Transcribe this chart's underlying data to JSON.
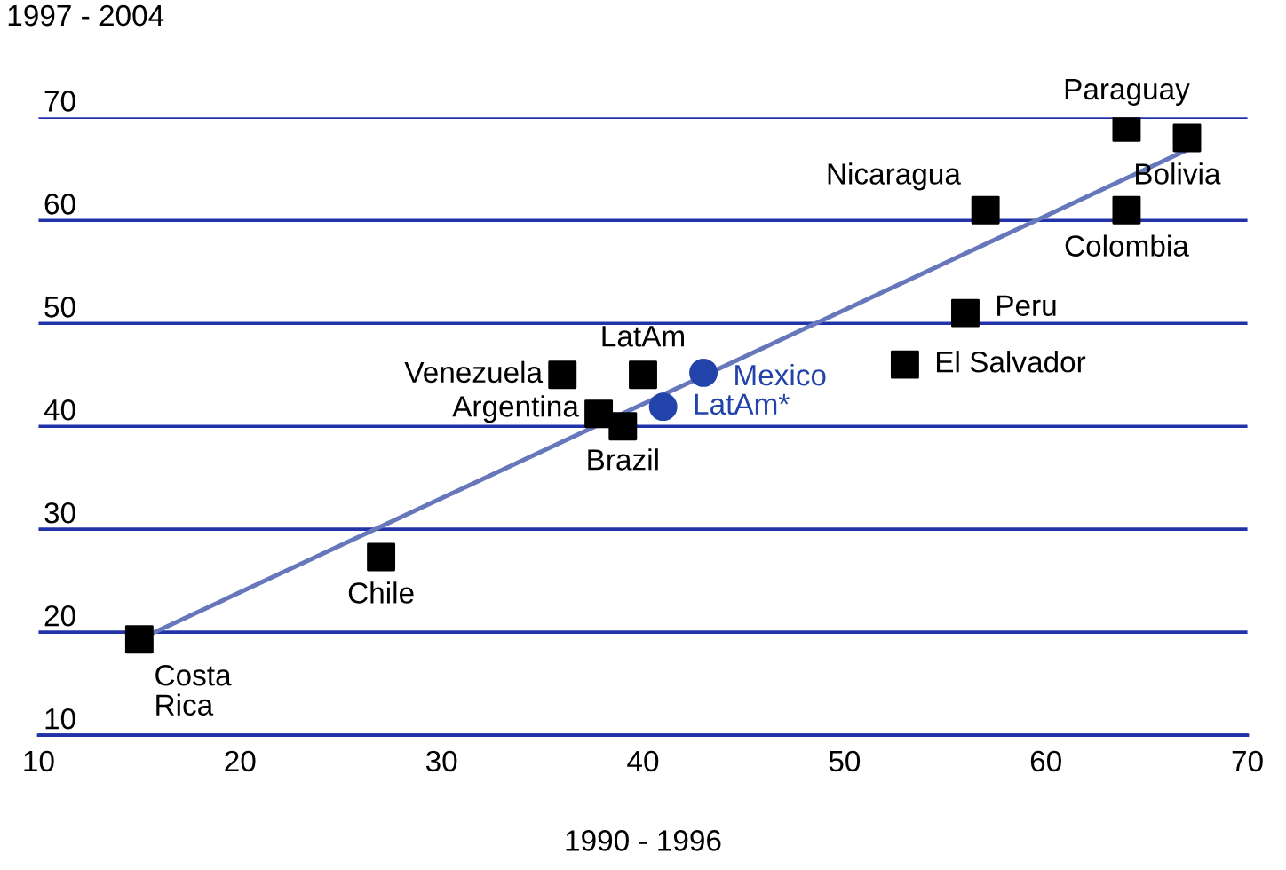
{
  "chart_data": {
    "type": "scatter",
    "xlabel": "1990 - 1996",
    "ylabel": "1997 - 2004",
    "xlim": [
      10,
      70
    ],
    "xticks": [
      10,
      20,
      30,
      40,
      50,
      60,
      70
    ],
    "ylim": [
      10,
      70
    ],
    "yticks": [
      10,
      20,
      30,
      40,
      50,
      60,
      70
    ],
    "grid": "y",
    "tick_labels": "xy",
    "series": [
      {
        "color": "#000000",
        "marker": "square",
        "x": [
          15,
          27,
          36,
          40,
          37.8,
          39,
          53,
          56,
          57,
          64,
          64,
          67
        ],
        "values": [
          19.3,
          27.3,
          45,
          45,
          41.2,
          40,
          46,
          51,
          61,
          61,
          69,
          68
        ]
      },
      {
        "color": "#2244aa",
        "marker": "circle",
        "x": [
          43,
          41
        ],
        "values": [
          45.2,
          41.9
        ]
      },
      {
        "type": "line",
        "color": "#6677bb",
        "marker": "none",
        "x": [
          15,
          67.5
        ],
        "values": [
          19.3,
          67.3
        ]
      }
    ],
    "annotations": [
      {
        "text": "Costa\nRica",
        "x": 15,
        "y": 19.3
      },
      {
        "text": "Chile",
        "x": 27,
        "y": 27.3
      },
      {
        "text": "Venezuela",
        "x": 36,
        "y": 45
      },
      {
        "text": "LatAm",
        "x": 40,
        "y": 45
      },
      {
        "text": "Argentina",
        "x": 37.8,
        "y": 41.2
      },
      {
        "text": "Brazil",
        "x": 39,
        "y": 40
      },
      {
        "text": "El Salvador",
        "x": 53,
        "y": 46
      },
      {
        "text": "Peru",
        "x": 56,
        "y": 51
      },
      {
        "text": "Nicaragua",
        "x": 57,
        "y": 61
      },
      {
        "text": "Colombia",
        "x": 64,
        "y": 61
      },
      {
        "text": "Paraguay",
        "x": 64,
        "y": 69
      },
      {
        "text": "Bolivia",
        "x": 67,
        "y": 68
      },
      {
        "text": "Mexico",
        "x": 43,
        "y": 45.2
      },
      {
        "text": "LatAm*",
        "x": 41,
        "y": 41.9
      }
    ]
  }
}
